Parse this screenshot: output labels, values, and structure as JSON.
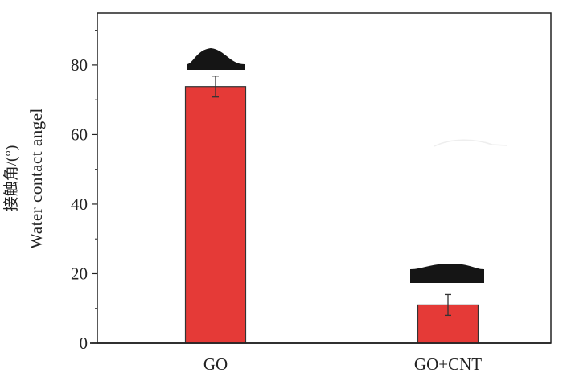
{
  "chart_data": {
    "type": "bar",
    "title": "",
    "categories": [
      "GO",
      "GO+CNT"
    ],
    "values": [
      73.8,
      11.0
    ],
    "errors": [
      3.0,
      3.0
    ],
    "xlabel": "",
    "ylabel_cn": "接触角/(°)",
    "ylabel": "Water contact angel",
    "ylim": [
      0,
      95
    ],
    "yticks": [
      0,
      20,
      40,
      60,
      80
    ],
    "yminor": [
      10,
      30,
      50,
      70,
      90
    ],
    "grid": false,
    "bar_color": "#e53a37",
    "insets": [
      "water droplet image on GO",
      "water droplet image on GO+CNT"
    ]
  }
}
